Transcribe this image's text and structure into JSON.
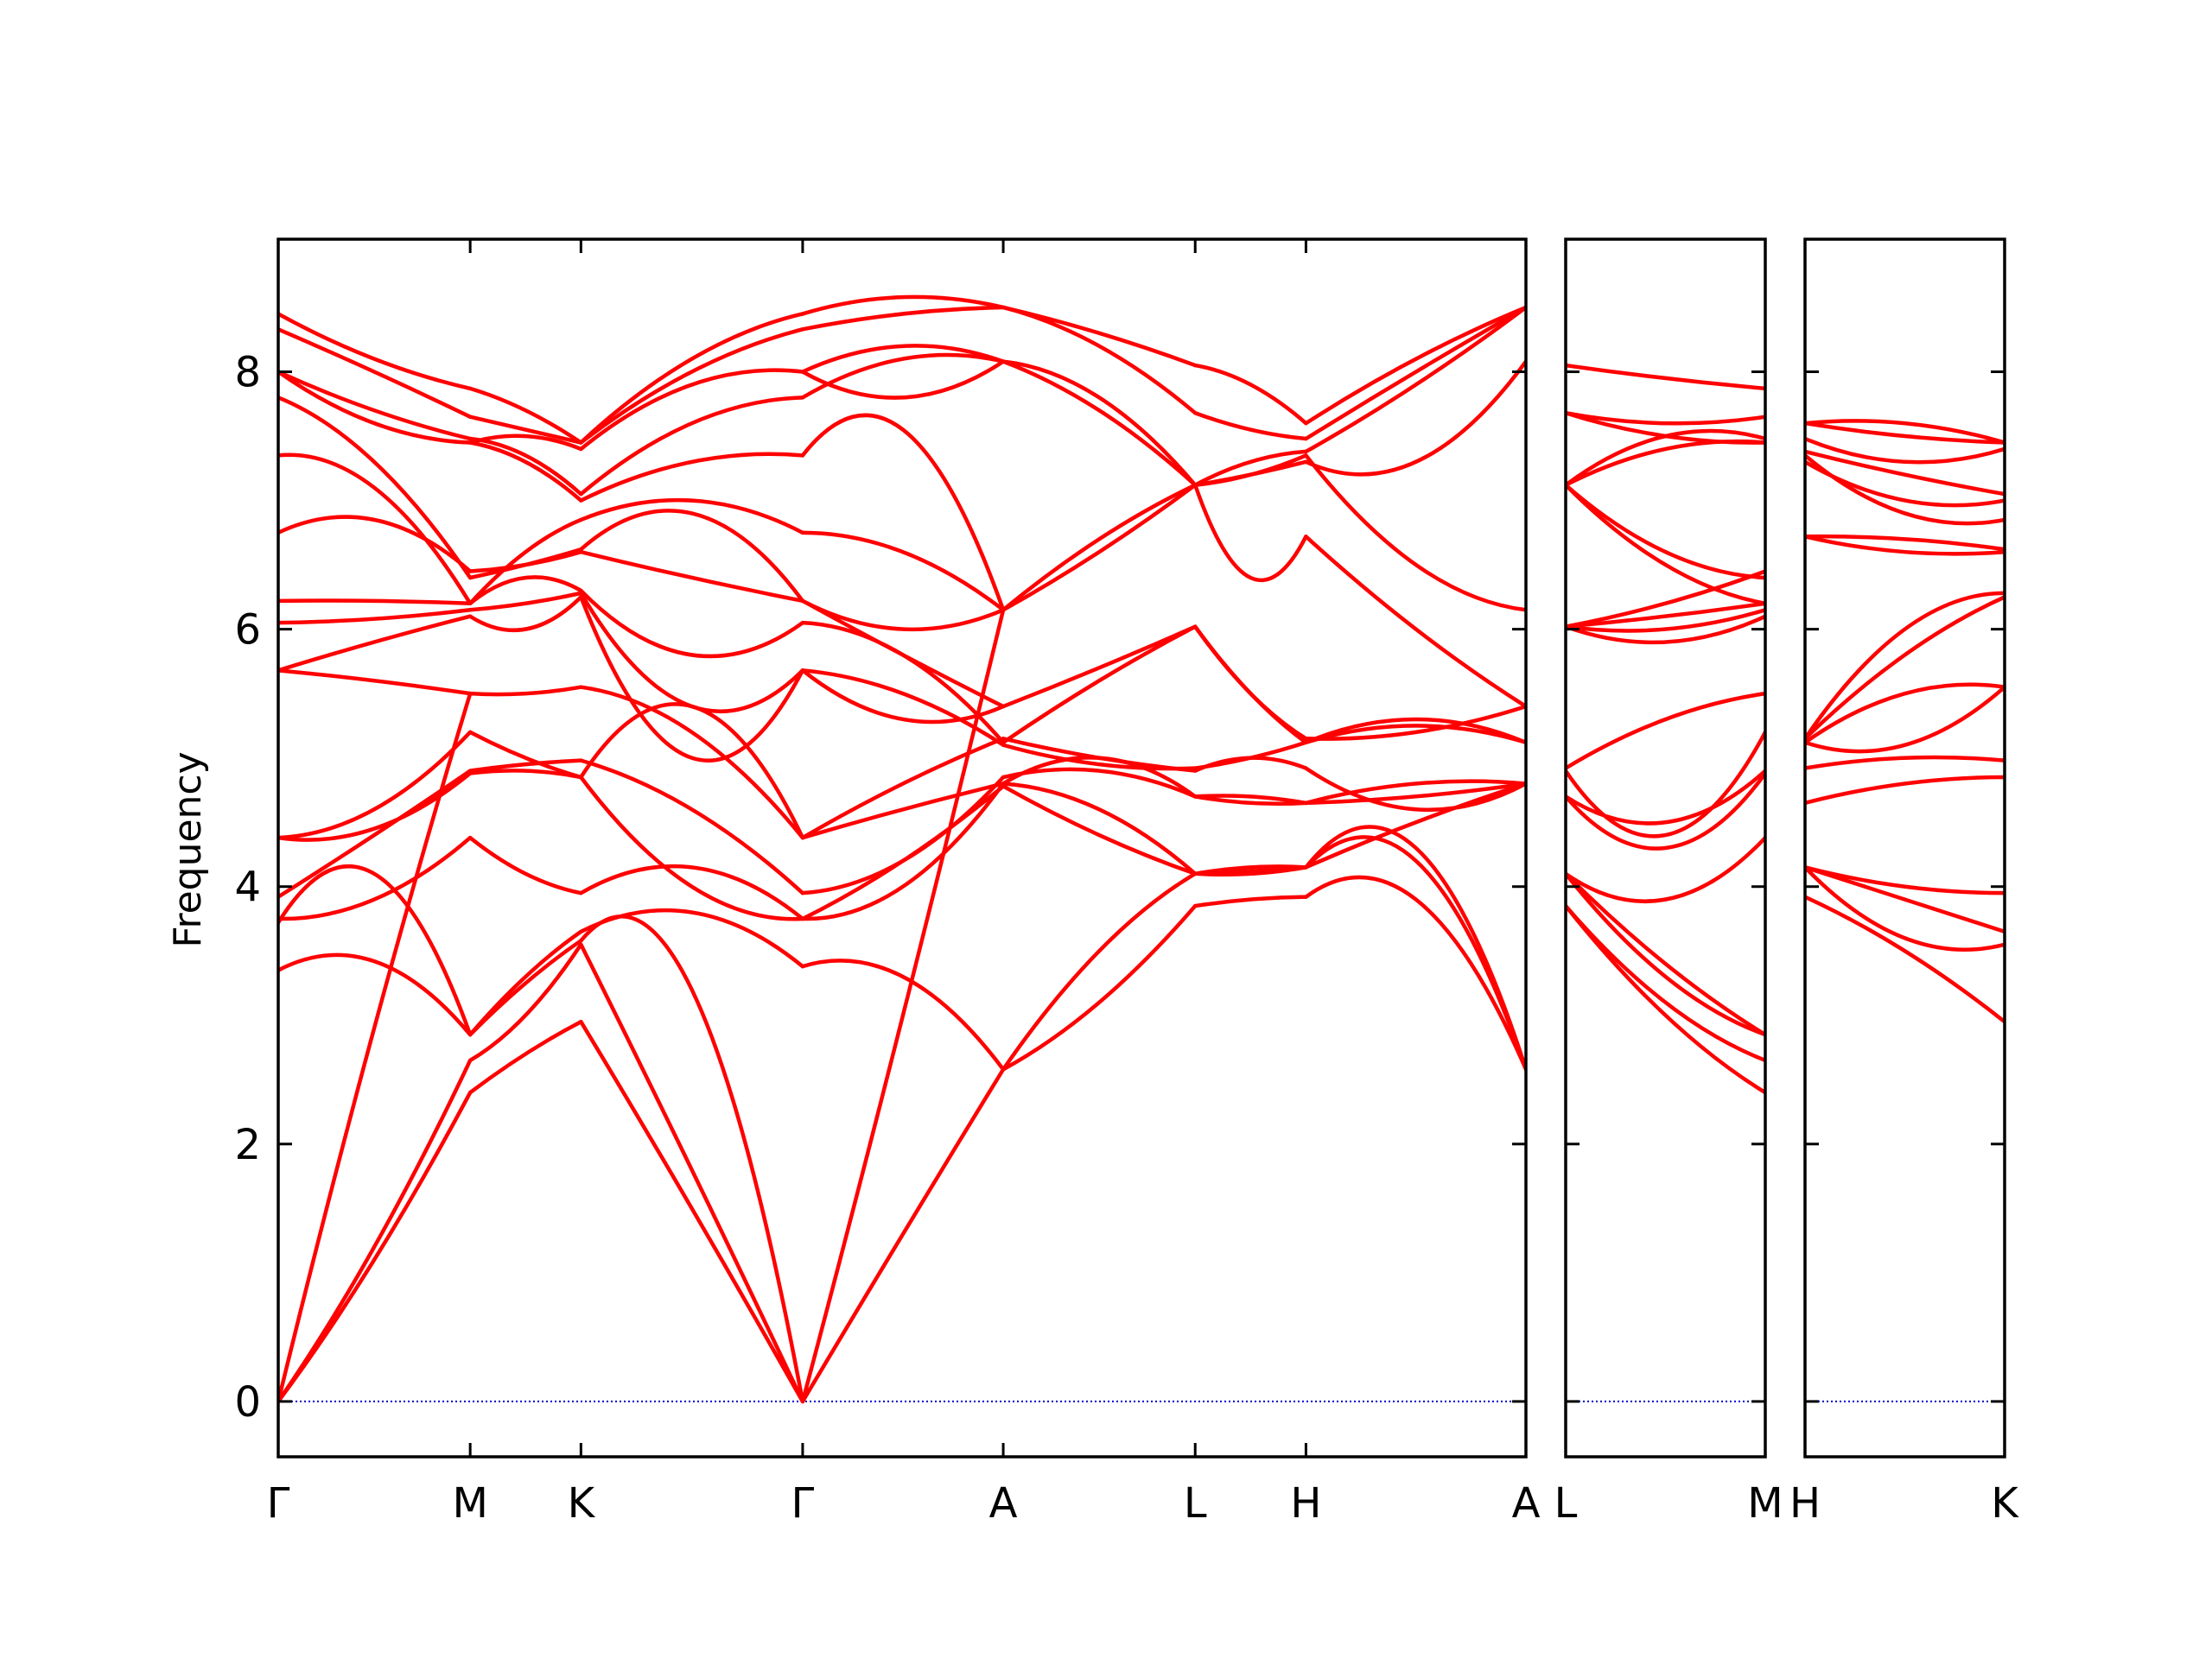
{
  "chart_data": {
    "type": "line",
    "title": "",
    "ylabel": "Frequency",
    "ylim": [
      -0.43,
      9.03
    ],
    "yticks": [
      0,
      2,
      4,
      6,
      8
    ],
    "line_color": "#ff0000",
    "zero_line_color": "#0000cc",
    "panels": [
      {
        "name": "main",
        "xlim": [
          0,
          6.5
        ],
        "ticks": [
          {
            "label": "Γ",
            "x": 0.0
          },
          {
            "label": "M",
            "x": 1.0
          },
          {
            "label": "K",
            "x": 1.577
          },
          {
            "label": "Γ",
            "x": 2.732
          },
          {
            "label": "A",
            "x": 3.777
          },
          {
            "label": "L",
            "x": 4.777
          },
          {
            "label": "H",
            "x": 5.354
          },
          {
            "label": "A",
            "x": 6.5
          }
        ],
        "segments": [
          {
            "from": "Γ",
            "to": "M",
            "x0": 0.0,
            "x1": 1.0,
            "bands": [
              [
                0,
                1.1,
                2.4
              ],
              [
                0,
                1.2,
                2.65
              ],
              [
                0,
                2.9,
                5.5
              ],
              [
                3.35,
                3.42,
                2.85
              ],
              [
                3.72,
                4.1,
                2.85
              ],
              [
                3.75,
                3.9,
                4.38
              ],
              [
                3.92,
                4.4,
                4.9
              ],
              [
                4.38,
                4.45,
                4.88
              ],
              [
                4.38,
                4.6,
                5.2
              ],
              [
                5.68,
                5.6,
                5.5
              ],
              [
                5.68,
                5.9,
                6.1
              ],
              [
                6.05,
                6.08,
                6.15
              ],
              [
                6.22,
                6.22,
                6.2
              ],
              [
                6.75,
                6.85,
                6.45
              ],
              [
                7.35,
                7.1,
                6.2
              ],
              [
                7.8,
                7.3,
                6.4
              ],
              [
                8.0,
                7.7,
                7.48
              ],
              [
                8.0,
                7.6,
                7.45
              ],
              [
                8.33,
                8.0,
                7.65
              ],
              [
                8.45,
                8.1,
                7.87
              ]
            ]
          },
          {
            "from": "M",
            "to": "K",
            "x0": 1.0,
            "x1": 1.577,
            "bands": [
              [
                2.4,
                2.7,
                2.95
              ],
              [
                2.65,
                3.0,
                3.55
              ],
              [
                2.85,
                3.25,
                3.58
              ],
              [
                2.85,
                3.3,
                3.65
              ],
              [
                4.38,
                4.1,
                3.95
              ],
              [
                4.88,
                4.9,
                4.85
              ],
              [
                4.9,
                4.95,
                4.98
              ],
              [
                5.2,
                5.0,
                4.85
              ],
              [
                5.5,
                5.5,
                5.55
              ],
              [
                6.1,
                6.0,
                6.25
              ],
              [
                6.15,
                6.2,
                6.28
              ],
              [
                6.2,
                6.4,
                6.3
              ],
              [
                6.45,
                6.5,
                6.6
              ],
              [
                6.4,
                6.5,
                6.62
              ],
              [
                6.2,
                6.6,
                6.85
              ],
              [
                7.45,
                7.3,
                7.0
              ],
              [
                7.48,
                7.35,
                7.05
              ],
              [
                7.45,
                7.5,
                7.4
              ],
              [
                7.65,
                7.55,
                7.45
              ],
              [
                7.87,
                7.7,
                7.45
              ]
            ]
          },
          {
            "from": "K",
            "to": "Γ",
            "x0": 1.577,
            "x1": 2.732,
            "bands": [
              [
                2.95,
                1.5,
                0
              ],
              [
                3.55,
                1.8,
                0
              ],
              [
                3.58,
                3.2,
                0
              ],
              [
                3.65,
                3.8,
                3.38
              ],
              [
                3.95,
                4.15,
                3.75
              ],
              [
                4.85,
                4.0,
                3.75
              ],
              [
                4.98,
                4.6,
                3.95
              ],
              [
                4.85,
                5.4,
                4.38
              ],
              [
                5.55,
                5.2,
                4.38
              ],
              [
                6.25,
                5.0,
                5.68
              ],
              [
                6.28,
                5.4,
                5.68
              ],
              [
                6.3,
                5.8,
                6.05
              ],
              [
                6.6,
                6.4,
                6.22
              ],
              [
                6.62,
                6.9,
                6.22
              ],
              [
                6.85,
                7.0,
                6.75
              ],
              [
                7.0,
                7.3,
                7.35
              ],
              [
                7.05,
                7.6,
                7.8
              ],
              [
                7.4,
                7.9,
                8.0
              ],
              [
                7.45,
                8.0,
                8.33
              ],
              [
                7.45,
                8.1,
                8.45
              ]
            ]
          },
          {
            "from": "Γ",
            "to": "A",
            "x0": 2.732,
            "x1": 3.777,
            "bands": [
              [
                0,
                1.3,
                2.58
              ],
              [
                0,
                3.0,
                6.15
              ],
              [
                3.38,
                3.3,
                2.58
              ],
              [
                3.75,
                4.2,
                4.78
              ],
              [
                3.75,
                4.0,
                4.8
              ],
              [
                3.95,
                4.2,
                4.85
              ],
              [
                4.38,
                4.6,
                4.8
              ],
              [
                4.38,
                4.8,
                5.15
              ],
              [
                5.68,
                5.3,
                5.4
              ],
              [
                5.68,
                5.5,
                5.1
              ],
              [
                6.05,
                5.8,
                5.12
              ],
              [
                6.22,
                5.8,
                5.4
              ],
              [
                6.22,
                6.0,
                6.15
              ],
              [
                6.75,
                6.6,
                6.15
              ],
              [
                7.35,
                7.55,
                6.15
              ],
              [
                7.8,
                8.1,
                8.08
              ],
              [
                8.0,
                8.2,
                8.08
              ],
              [
                8.0,
                7.8,
                8.08
              ],
              [
                8.33,
                8.45,
                8.5
              ],
              [
                8.45,
                8.58,
                8.5
              ]
            ]
          },
          {
            "from": "A",
            "to": "L",
            "x0": 3.777,
            "x1": 4.777,
            "bands": [
              [
                2.58,
                3.1,
                3.85
              ],
              [
                2.58,
                3.5,
                4.1
              ],
              [
                4.78,
                4.4,
                4.1
              ],
              [
                4.8,
                4.6,
                4.1
              ],
              [
                4.85,
                4.9,
                4.7
              ],
              [
                4.8,
                5.0,
                4.7
              ],
              [
                5.15,
                5.0,
                4.9
              ],
              [
                5.1,
                4.95,
                4.92
              ],
              [
                5.12,
                5.6,
                6.02
              ],
              [
                5.4,
                5.7,
                6.02
              ],
              [
                6.15,
                6.6,
                7.12
              ],
              [
                6.15,
                6.7,
                7.12
              ],
              [
                8.08,
                7.7,
                7.12
              ],
              [
                8.08,
                7.8,
                7.12
              ],
              [
                8.5,
                8.2,
                7.68
              ],
              [
                8.5,
                8.3,
                8.05
              ]
            ]
          },
          {
            "from": "L",
            "to": "H",
            "x0": 4.777,
            "x1": 5.354,
            "bands": [
              [
                3.85,
                3.9,
                3.92
              ],
              [
                4.1,
                4.15,
                4.15
              ],
              [
                4.1,
                4.12,
                4.15
              ],
              [
                4.1,
                4.1,
                4.15
              ],
              [
                4.7,
                4.7,
                4.65
              ],
              [
                4.7,
                4.65,
                4.65
              ],
              [
                4.9,
                5.0,
                4.92
              ],
              [
                4.92,
                5.0,
                5.12
              ],
              [
                6.02,
                5.5,
                5.12
              ],
              [
                6.02,
                5.5,
                5.15
              ],
              [
                7.12,
                6.4,
                6.72
              ],
              [
                7.12,
                7.2,
                7.35
              ],
              [
                7.12,
                7.2,
                7.3
              ],
              [
                7.12,
                7.3,
                7.38
              ],
              [
                7.68,
                7.55,
                7.48
              ],
              [
                8.05,
                7.9,
                7.6
              ]
            ]
          },
          {
            "from": "H",
            "to": "A",
            "x0": 5.354,
            "x1": 6.5,
            "bands": [
              [
                3.92,
                3.9,
                2.58
              ],
              [
                4.15,
                4.2,
                2.58
              ],
              [
                4.15,
                4.3,
                2.58
              ],
              [
                4.15,
                4.5,
                4.8
              ],
              [
                4.65,
                4.7,
                4.8
              ],
              [
                4.65,
                4.8,
                4.8
              ],
              [
                4.92,
                4.6,
                4.8
              ],
              [
                5.12,
                5.25,
                5.12
              ],
              [
                5.12,
                5.3,
                5.12
              ],
              [
                5.15,
                5.2,
                5.4
              ],
              [
                6.72,
                6.0,
                5.4
              ],
              [
                7.35,
                6.5,
                6.15
              ],
              [
                7.3,
                7.3,
                8.08
              ],
              [
                7.38,
                7.9,
                8.5
              ],
              [
                7.48,
                8.0,
                8.5
              ],
              [
                7.6,
                8.1,
                8.5
              ]
            ]
          }
        ]
      },
      {
        "name": "L-M",
        "xlim": [
          0,
          1
        ],
        "ticks": [
          {
            "label": "L",
            "x": 0
          },
          {
            "label": "M",
            "x": 1
          }
        ],
        "segments": [
          {
            "from": "L",
            "to": "M",
            "x0": 0,
            "x1": 1,
            "bands": [
              [
                3.85,
                3.0,
                2.4
              ],
              [
                3.85,
                3.1,
                2.65
              ],
              [
                4.1,
                3.3,
                2.85
              ],
              [
                4.1,
                3.4,
                2.85
              ],
              [
                4.1,
                3.9,
                4.38
              ],
              [
                4.7,
                4.3,
                4.88
              ],
              [
                4.7,
                4.5,
                4.9
              ],
              [
                4.9,
                4.4,
                5.2
              ],
              [
                4.92,
                5.3,
                5.5
              ],
              [
                6.02,
                5.9,
                6.1
              ],
              [
                6.02,
                6.0,
                6.15
              ],
              [
                6.02,
                6.1,
                6.2
              ],
              [
                6.02,
                6.2,
                6.45
              ],
              [
                7.12,
                6.6,
                6.4
              ],
              [
                7.12,
                6.5,
                6.2
              ],
              [
                7.12,
                7.4,
                7.45
              ],
              [
                7.12,
                7.5,
                7.48
              ],
              [
                7.68,
                7.6,
                7.65
              ],
              [
                7.68,
                7.5,
                7.45
              ],
              [
                8.05,
                7.95,
                7.87
              ]
            ]
          }
        ]
      },
      {
        "name": "H-K",
        "xlim": [
          0,
          1
        ],
        "ticks": [
          {
            "label": "H",
            "x": 0
          },
          {
            "label": "K",
            "x": 1
          }
        ],
        "segments": [
          {
            "from": "H",
            "to": "K",
            "x0": 0,
            "x1": 1,
            "bands": [
              [
                3.92,
                3.5,
                2.95
              ],
              [
                4.15,
                3.6,
                3.55
              ],
              [
                4.15,
                3.9,
                3.65
              ],
              [
                4.15,
                4.0,
                3.95
              ],
              [
                4.65,
                4.8,
                4.85
              ],
              [
                4.92,
                5.0,
                4.98
              ],
              [
                5.12,
                5.1,
                5.55
              ],
              [
                5.12,
                5.5,
                5.55
              ],
              [
                5.15,
                5.8,
                6.25
              ],
              [
                5.15,
                6.0,
                6.28
              ],
              [
                6.72,
                6.6,
                6.6
              ],
              [
                6.72,
                6.7,
                6.62
              ],
              [
                7.35,
                6.9,
                6.85
              ],
              [
                7.3,
                7.0,
                7.0
              ],
              [
                7.38,
                7.2,
                7.05
              ],
              [
                7.48,
                7.3,
                7.4
              ],
              [
                7.6,
                7.5,
                7.45
              ],
              [
                7.6,
                7.6,
                7.45
              ]
            ]
          }
        ]
      }
    ]
  }
}
